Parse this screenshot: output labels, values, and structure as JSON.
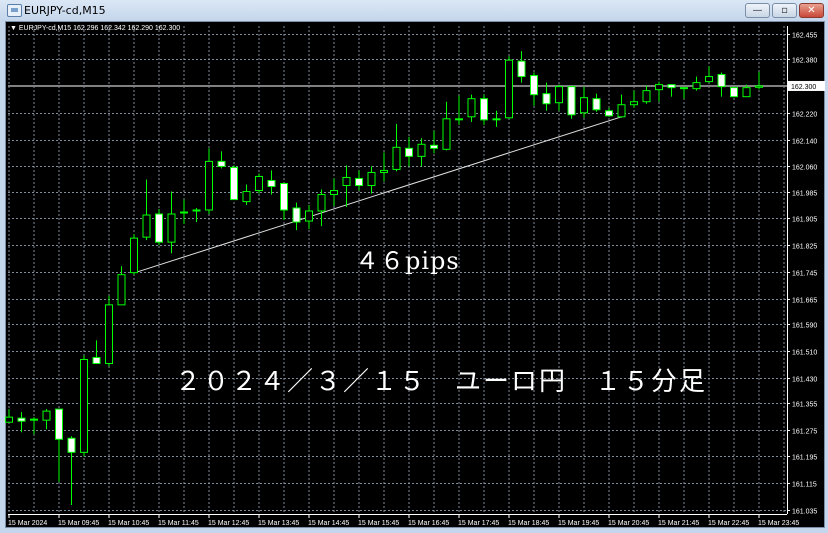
{
  "window": {
    "title": "EURJPY-cd,M15",
    "buttons": {
      "minimize": "—",
      "maximize": "▫",
      "close": "✕"
    }
  },
  "chart_header": {
    "symbol": "EURJPY-cd,M15",
    "ohlc_text": "162.296 162.342 162.290 162.300"
  },
  "annotations": {
    "pips": "４６pips",
    "caption": "２０２４／３／１５　ユーロ円　１５分足"
  },
  "colors": {
    "background": "#000000",
    "candle_outline": "#00ff00",
    "bull_body": "#000000",
    "bear_body": "#ffffff",
    "grid": "#7f8c99",
    "trendline": "#e0e0e0",
    "price_line": "#808080"
  },
  "chart_data": {
    "type": "candlestick",
    "timeframe": "M15",
    "price_ticks": [
      "162.455",
      "162.380",
      "162.300",
      "162.220",
      "162.140",
      "162.060",
      "161.985",
      "161.905",
      "161.825",
      "161.745",
      "161.665",
      "161.590",
      "161.510",
      "161.430",
      "161.355",
      "161.275",
      "161.195",
      "161.115",
      "161.035"
    ],
    "ylim": [
      161.035,
      162.455
    ],
    "current_price": "162.300",
    "time_labels": [
      "15 Mar 2024",
      "15 Mar 09:45",
      "15 Mar 10:45",
      "15 Mar 11:45",
      "15 Mar 12:45",
      "15 Mar 13:45",
      "15 Mar 14:45",
      "15 Mar 15:45",
      "15 Mar 16:45",
      "15 Mar 17:45",
      "15 Mar 18:45",
      "15 Mar 19:45",
      "15 Mar 20:45",
      "15 Mar 21:45",
      "15 Mar 22:45",
      "15 Mar 23:45"
    ],
    "grid": true,
    "ohlc": [
      [
        161.297,
        161.336,
        161.297,
        161.312
      ],
      [
        161.309,
        161.327,
        161.267,
        161.3
      ],
      [
        161.306,
        161.312,
        161.261,
        161.306
      ],
      [
        161.303,
        161.336,
        161.276,
        161.33
      ],
      [
        161.336,
        161.336,
        161.119,
        161.246
      ],
      [
        161.249,
        161.255,
        161.05,
        161.207
      ],
      [
        161.207,
        161.496,
        161.195,
        161.484
      ],
      [
        161.49,
        161.541,
        161.472,
        161.472
      ],
      [
        161.472,
        161.674,
        161.463,
        161.647
      ],
      [
        161.647,
        161.762,
        161.647,
        161.737
      ],
      [
        161.743,
        161.858,
        161.737,
        161.846
      ],
      [
        161.849,
        162.021,
        161.84,
        161.915
      ],
      [
        161.918,
        161.933,
        161.825,
        161.834
      ],
      [
        161.834,
        161.985,
        161.801,
        161.918
      ],
      [
        161.924,
        161.961,
        161.888,
        161.924
      ],
      [
        161.927,
        161.936,
        161.894,
        161.93
      ],
      [
        161.93,
        162.114,
        161.918,
        162.075
      ],
      [
        162.075,
        162.105,
        162.054,
        162.06
      ],
      [
        162.057,
        162.063,
        161.961,
        161.961
      ],
      [
        161.955,
        162.006,
        161.945,
        161.985
      ],
      [
        161.988,
        162.039,
        161.979,
        162.03
      ],
      [
        162.018,
        162.048,
        161.976,
        162.0
      ],
      [
        162.009,
        162.009,
        161.9,
        161.93
      ],
      [
        161.936,
        161.952,
        161.87,
        161.894
      ],
      [
        161.897,
        161.945,
        161.873,
        161.927
      ],
      [
        161.927,
        161.991,
        161.882,
        161.976
      ],
      [
        161.976,
        162.024,
        161.942,
        161.988
      ],
      [
        162.003,
        162.063,
        161.939,
        162.027
      ],
      [
        162.024,
        162.048,
        161.988,
        162.003
      ],
      [
        162.003,
        162.06,
        161.979,
        162.042
      ],
      [
        162.042,
        162.102,
        162.015,
        162.048
      ],
      [
        162.051,
        162.187,
        162.045,
        162.117
      ],
      [
        162.114,
        162.148,
        162.06,
        162.09
      ],
      [
        162.09,
        162.144,
        162.06,
        162.126
      ],
      [
        162.123,
        162.166,
        162.099,
        162.114
      ],
      [
        162.111,
        162.253,
        162.108,
        162.202
      ],
      [
        162.202,
        162.271,
        162.184,
        162.202
      ],
      [
        162.208,
        162.274,
        162.193,
        162.262
      ],
      [
        162.262,
        162.274,
        162.184,
        162.199
      ],
      [
        162.202,
        162.226,
        162.178,
        162.202
      ],
      [
        162.205,
        162.389,
        162.202,
        162.377
      ],
      [
        162.374,
        162.404,
        162.31,
        162.328
      ],
      [
        162.331,
        162.34,
        162.241,
        162.274
      ],
      [
        162.277,
        162.31,
        162.226,
        162.247
      ],
      [
        162.25,
        162.304,
        162.226,
        162.298
      ],
      [
        162.298,
        162.298,
        162.202,
        162.214
      ],
      [
        162.22,
        162.298,
        162.205,
        162.265
      ],
      [
        162.262,
        162.277,
        162.223,
        162.229
      ],
      [
        162.226,
        162.235,
        162.208,
        162.211
      ],
      [
        162.208,
        162.274,
        162.205,
        162.244
      ],
      [
        162.244,
        162.286,
        162.235,
        162.253
      ],
      [
        162.253,
        162.301,
        162.247,
        162.286
      ],
      [
        162.289,
        162.313,
        162.253,
        162.304
      ],
      [
        162.304,
        162.304,
        162.268,
        162.295
      ],
      [
        162.295,
        162.295,
        162.262,
        162.292
      ],
      [
        162.292,
        162.328,
        162.286,
        162.31
      ],
      [
        162.313,
        162.359,
        162.31,
        162.328
      ],
      [
        162.334,
        162.34,
        162.268,
        162.298
      ],
      [
        162.295,
        162.298,
        162.268,
        162.268
      ],
      [
        162.268,
        162.304,
        162.268,
        162.295
      ],
      [
        162.296,
        162.342,
        162.29,
        162.3
      ]
    ],
    "trendline": {
      "from_bar": 10,
      "from_price": 161.746,
      "to_bar": 49,
      "to_price": 162.208
    },
    "horizontal_line": 162.3
  }
}
